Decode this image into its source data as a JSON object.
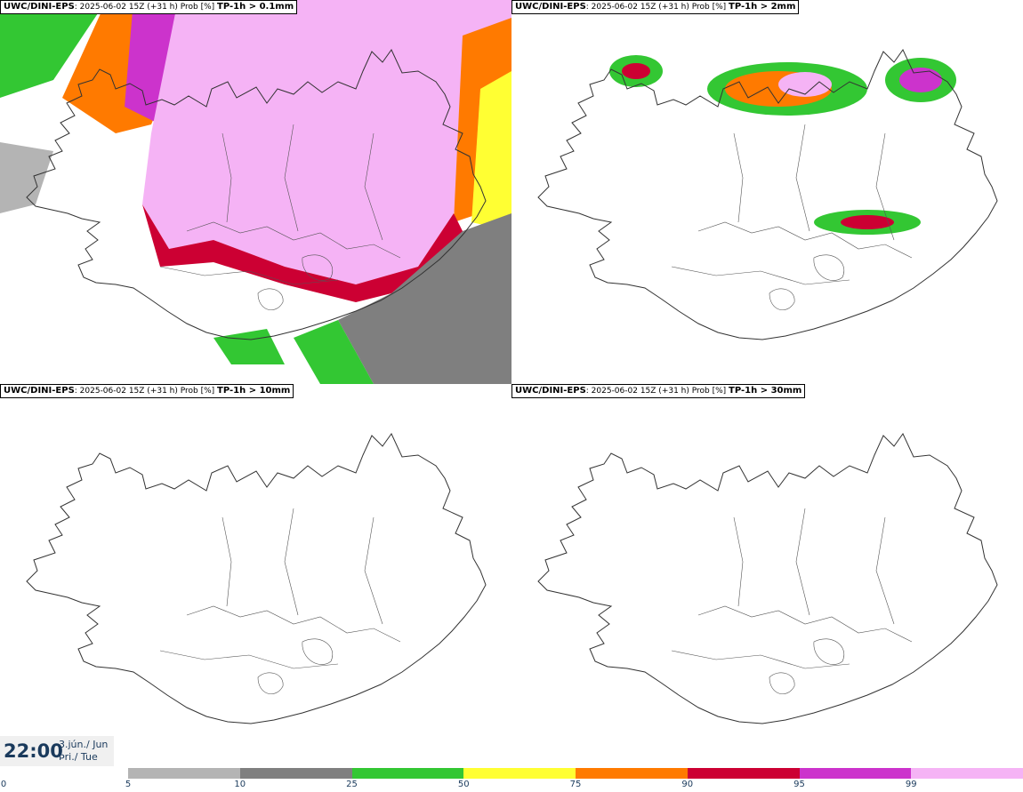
{
  "panels": [
    {
      "label_model": "UWC/DINI-EPS",
      "label_meta": ": 2025-06-02 15Z (+31 h) Prob [%]",
      "label_threshold": "TP-1h > 0.1mm"
    },
    {
      "label_model": "UWC/DINI-EPS",
      "label_meta": ": 2025-06-02 15Z (+31 h) Prob [%]",
      "label_threshold": "TP-1h > 2mm"
    },
    {
      "label_model": "UWC/DINI-EPS",
      "label_meta": ": 2025-06-02 15Z (+31 h) Prob [%]",
      "label_threshold": "TP-1h > 10mm"
    },
    {
      "label_model": "UWC/DINI-EPS",
      "label_meta": ": 2025-06-02 15Z (+31 h) Prob [%]",
      "label_threshold": "TP-1h > 30mm"
    }
  ],
  "valid_time": {
    "time": "22:00",
    "date_line1": "3.jún./ Jun",
    "date_line2": "Þri./ Tue"
  },
  "legend": {
    "ticks": [
      "0",
      "5",
      "10",
      "25",
      "50",
      "75",
      "90",
      "95",
      "99"
    ],
    "colors": [
      "#b4b4b4",
      "#7f7f7f",
      "#33c733",
      "#ffff33",
      "#ff7a00",
      "#cc0033",
      "#cc33cc",
      "#f5b3f5"
    ]
  }
}
